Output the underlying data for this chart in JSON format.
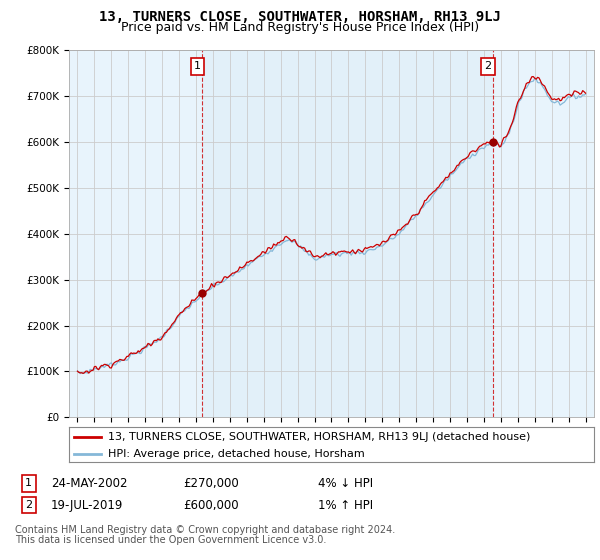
{
  "title": "13, TURNERS CLOSE, SOUTHWATER, HORSHAM, RH13 9LJ",
  "subtitle": "Price paid vs. HM Land Registry's House Price Index (HPI)",
  "ylim": [
    0,
    800000
  ],
  "yticks": [
    0,
    100000,
    200000,
    300000,
    400000,
    500000,
    600000,
    700000,
    800000
  ],
  "ytick_labels": [
    "£0",
    "£100K",
    "£200K",
    "£300K",
    "£400K",
    "£500K",
    "£600K",
    "£700K",
    "£800K"
  ],
  "sale1_year": 2002.38,
  "sale1_price": 270000,
  "sale1_label": "1",
  "sale1_date": "24-MAY-2002",
  "sale1_text": "£270,000",
  "sale1_hpi": "4% ↓ HPI",
  "sale2_year": 2019.54,
  "sale2_price": 600000,
  "sale2_label": "2",
  "sale2_date": "19-JUL-2019",
  "sale2_text": "£600,000",
  "sale2_hpi": "1% ↑ HPI",
  "line_color_red": "#cc0000",
  "line_color_blue": "#85b8d8",
  "marker_color": "#990000",
  "marker_box_color": "#cc0000",
  "fill_color": "#ddeef8",
  "legend_label_red": "13, TURNERS CLOSE, SOUTHWATER, HORSHAM, RH13 9LJ (detached house)",
  "legend_label_blue": "HPI: Average price, detached house, Horsham",
  "footer1": "Contains HM Land Registry data © Crown copyright and database right 2024.",
  "footer2": "This data is licensed under the Open Government Licence v3.0.",
  "bg_color": "#ffffff",
  "plot_bg_color": "#e8f4fc",
  "grid_color": "#cccccc",
  "title_fontsize": 10,
  "subtitle_fontsize": 9,
  "axis_fontsize": 7.5,
  "legend_fontsize": 8.0,
  "footer_fontsize": 7.0
}
